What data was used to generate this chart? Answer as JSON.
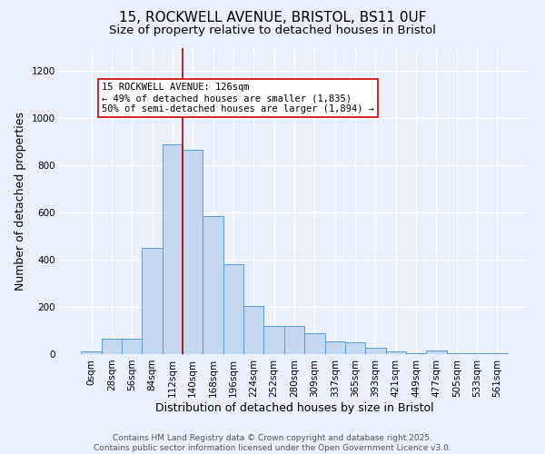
{
  "title_line1": "15, ROCKWELL AVENUE, BRISTOL, BS11 0UF",
  "title_line2": "Size of property relative to detached houses in Bristol",
  "xlabel": "Distribution of detached houses by size in Bristol",
  "ylabel": "Number of detached properties",
  "bar_values": [
    10,
    65,
    65,
    450,
    890,
    865,
    585,
    380,
    205,
    120,
    120,
    90,
    55,
    50,
    27,
    12,
    5,
    15,
    5,
    3,
    2
  ],
  "bin_labels": [
    "0sqm",
    "28sqm",
    "56sqm",
    "84sqm",
    "112sqm",
    "140sqm",
    "168sqm",
    "196sqm",
    "224sqm",
    "252sqm",
    "280sqm",
    "309sqm",
    "337sqm",
    "365sqm",
    "393sqm",
    "421sqm",
    "449sqm",
    "477sqm",
    "505sqm",
    "533sqm",
    "561sqm"
  ],
  "bar_color": "#c5d8f0",
  "bar_edge_color": "#5b9bd5",
  "bg_color": "#eaf0fb",
  "grid_color": "#ffffff",
  "vline_color": "#aa0000",
  "annotation_text": "15 ROCKWELL AVENUE: 126sqm\n← 49% of detached houses are smaller (1,835)\n50% of semi-detached houses are larger (1,894) →",
  "annotation_box_color": "#ffffff",
  "annotation_box_edge": "#cc0000",
  "ylim": [
    0,
    1300
  ],
  "yticks": [
    0,
    200,
    400,
    600,
    800,
    1000,
    1200
  ],
  "footer_text": "Contains HM Land Registry data © Crown copyright and database right 2025.\nContains public sector information licensed under the Open Government Licence v3.0.",
  "title_fontsize": 11,
  "subtitle_fontsize": 9.5,
  "axis_label_fontsize": 9,
  "tick_fontsize": 7.5,
  "annotation_fontsize": 7.5,
  "footer_fontsize": 6.5
}
